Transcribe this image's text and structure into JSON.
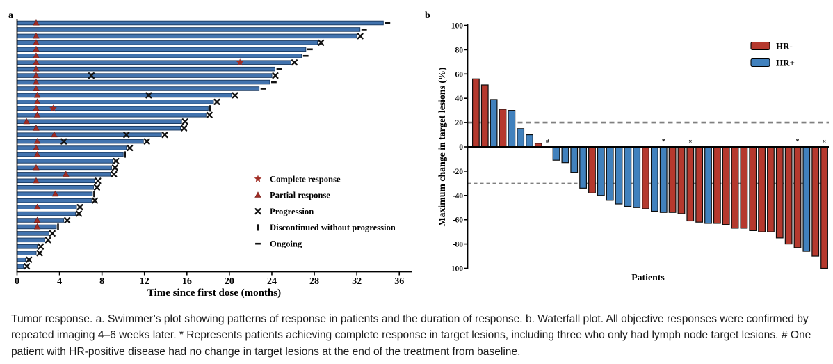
{
  "caption": "Tumor response. a. Swimmer’s plot showing patterns of response in patients and the duration of response. b. Waterfall plot. All objective responses were confirmed by repeated imaging 4–6 weeks later. * Represents patients achieving complete response in target lesions, including three who only had lymph node target lesions. # One patient with HR-positive disease had no change in target lesions at the end of the treatment from baseline.",
  "colors": {
    "hr_neg": "#b5392e",
    "hr_pos": "#4181bd",
    "swimmer_bar": "#4273ae",
    "swimmer_bar_edge": "#17375e",
    "response_red": "#a02c24",
    "marker_black": "#111111",
    "axis_black": "#000000",
    "dash_gray": "#7f7f7f"
  },
  "chart_data": [
    {
      "type": "bar",
      "subtype": "swimmer",
      "panel": "a",
      "xlabel": "Time since first dose (months)",
      "x_ticks": [
        0,
        4,
        8,
        12,
        16,
        20,
        24,
        28,
        32,
        36
      ],
      "xlim": [
        0,
        37.2
      ],
      "grid": false,
      "legend_position": "lower-right-inside",
      "legend": [
        {
          "symbol": "star",
          "label": "Complete response"
        },
        {
          "symbol": "triangle",
          "label": "Partial response"
        },
        {
          "symbol": "x",
          "label": "Progression"
        },
        {
          "symbol": "bar",
          "label": "Discontinued without progression"
        },
        {
          "symbol": "dash",
          "label": "Ongoing"
        }
      ],
      "patients": [
        {
          "duration": 34.5,
          "end": "ongoing",
          "pr": 1.8,
          "cr": null,
          "progression_marks": []
        },
        {
          "duration": 32.3,
          "end": "ongoing",
          "pr": null,
          "cr": null,
          "progression_marks": []
        },
        {
          "duration": 32.0,
          "end": "progression",
          "pr": 1.8,
          "cr": null,
          "progression_marks": []
        },
        {
          "duration": 28.3,
          "end": "progression",
          "pr": 1.8,
          "cr": null,
          "progression_marks": []
        },
        {
          "duration": 27.2,
          "end": "ongoing",
          "pr": 1.8,
          "cr": null,
          "progression_marks": []
        },
        {
          "duration": 26.8,
          "end": "ongoing",
          "pr": 1.8,
          "cr": null,
          "progression_marks": []
        },
        {
          "duration": 25.8,
          "end": "progression",
          "pr": 1.8,
          "cr": 21.0,
          "progression_marks": []
        },
        {
          "duration": 24.3,
          "end": "ongoing",
          "pr": 1.8,
          "cr": null,
          "progression_marks": []
        },
        {
          "duration": 24.0,
          "end": "progression",
          "pr": 1.8,
          "cr": null,
          "progression_marks": [
            7.0
          ]
        },
        {
          "duration": 23.8,
          "end": "ongoing",
          "pr": 1.8,
          "cr": null,
          "progression_marks": []
        },
        {
          "duration": 22.8,
          "end": "ongoing",
          "pr": 1.8,
          "cr": null,
          "progression_marks": []
        },
        {
          "duration": 20.2,
          "end": "progression",
          "pr": 1.9,
          "cr": null,
          "progression_marks": [
            12.4
          ]
        },
        {
          "duration": 18.5,
          "end": "progression",
          "pr": 1.9,
          "cr": null,
          "progression_marks": []
        },
        {
          "duration": 18.0,
          "end": "discontinued",
          "pr": 1.8,
          "cr": 3.4,
          "progression_marks": []
        },
        {
          "duration": 17.8,
          "end": "progression",
          "pr": 1.9,
          "cr": null,
          "progression_marks": []
        },
        {
          "duration": 15.5,
          "end": "progression",
          "pr": 0.9,
          "cr": null,
          "progression_marks": []
        },
        {
          "duration": 15.4,
          "end": "progression",
          "pr": 1.8,
          "cr": null,
          "progression_marks": []
        },
        {
          "duration": 13.6,
          "end": "progression",
          "pr": 3.5,
          "cr": null,
          "progression_marks": [
            10.3
          ]
        },
        {
          "duration": 11.9,
          "end": "progression",
          "pr": 1.9,
          "cr": null,
          "progression_marks": [
            4.4
          ]
        },
        {
          "duration": 10.3,
          "end": "progression",
          "pr": 1.8,
          "cr": null,
          "progression_marks": []
        },
        {
          "duration": 10.0,
          "end": "discontinued",
          "pr": 1.9,
          "cr": null,
          "progression_marks": []
        },
        {
          "duration": 9.0,
          "end": "progression",
          "pr": null,
          "cr": null,
          "progression_marks": []
        },
        {
          "duration": 8.9,
          "end": "progression",
          "pr": 1.8,
          "cr": null,
          "progression_marks": []
        },
        {
          "duration": 8.8,
          "end": "progression",
          "pr": 4.6,
          "cr": null,
          "progression_marks": []
        },
        {
          "duration": 7.3,
          "end": "progression",
          "pr": 1.8,
          "cr": null,
          "progression_marks": []
        },
        {
          "duration": 7.2,
          "end": "progression",
          "pr": null,
          "cr": null,
          "progression_marks": []
        },
        {
          "duration": 7.1,
          "end": "discontinued",
          "pr": 3.6,
          "cr": null,
          "progression_marks": []
        },
        {
          "duration": 7.0,
          "end": "progression",
          "pr": null,
          "cr": null,
          "progression_marks": []
        },
        {
          "duration": 5.6,
          "end": "progression",
          "pr": 1.9,
          "cr": null,
          "progression_marks": []
        },
        {
          "duration": 5.5,
          "end": "progression",
          "pr": null,
          "cr": null,
          "progression_marks": []
        },
        {
          "duration": 4.4,
          "end": "progression",
          "pr": 1.9,
          "cr": null,
          "progression_marks": []
        },
        {
          "duration": 3.7,
          "end": "discontinued",
          "pr": 1.9,
          "cr": null,
          "progression_marks": []
        },
        {
          "duration": 3.0,
          "end": "progression",
          "pr": null,
          "cr": null,
          "progression_marks": []
        },
        {
          "duration": 2.6,
          "end": "progression",
          "pr": null,
          "cr": null,
          "progression_marks": []
        },
        {
          "duration": 1.9,
          "end": "progression",
          "pr": null,
          "cr": null,
          "progression_marks": []
        },
        {
          "duration": 1.8,
          "end": "progression",
          "pr": null,
          "cr": null,
          "progression_marks": []
        },
        {
          "duration": 0.8,
          "end": "progression",
          "pr": null,
          "cr": null,
          "progression_marks": []
        },
        {
          "duration": 0.6,
          "end": "progression",
          "pr": null,
          "cr": null,
          "progression_marks": []
        }
      ]
    },
    {
      "type": "bar",
      "subtype": "waterfall",
      "panel": "b",
      "ylabel": "Maximum change in target lesions (%)",
      "xlabel": "Patients",
      "y_ticks": [
        100,
        80,
        60,
        40,
        20,
        0,
        -20,
        -40,
        -60,
        -80,
        -100
      ],
      "ylim": [
        -100,
        100
      ],
      "grid": false,
      "threshold_lines": [
        20,
        -30
      ],
      "legend_position": "upper-right-inside",
      "legend": [
        {
          "label": "HR-",
          "color_key": "hr_neg"
        },
        {
          "label": "HR+",
          "color_key": "hr_pos"
        }
      ],
      "bars": [
        {
          "value": 56,
          "group": "HR-",
          "mark": null
        },
        {
          "value": 51,
          "group": "HR-",
          "mark": null
        },
        {
          "value": 39,
          "group": "HR+",
          "mark": null
        },
        {
          "value": 31,
          "group": "HR-",
          "mark": null
        },
        {
          "value": 30,
          "group": "HR+",
          "mark": null
        },
        {
          "value": 15,
          "group": "HR+",
          "mark": null
        },
        {
          "value": 10,
          "group": "HR+",
          "mark": null
        },
        {
          "value": 3,
          "group": "HR-",
          "mark": null
        },
        {
          "value": 0,
          "group": "HR+",
          "mark": "#"
        },
        {
          "value": -11,
          "group": "HR+",
          "mark": null
        },
        {
          "value": -13,
          "group": "HR+",
          "mark": null
        },
        {
          "value": -21,
          "group": "HR+",
          "mark": null
        },
        {
          "value": -34,
          "group": "HR+",
          "mark": null
        },
        {
          "value": -38,
          "group": "HR-",
          "mark": null
        },
        {
          "value": -40,
          "group": "HR+",
          "mark": null
        },
        {
          "value": -44,
          "group": "HR+",
          "mark": null
        },
        {
          "value": -47,
          "group": "HR+",
          "mark": null
        },
        {
          "value": -49,
          "group": "HR+",
          "mark": null
        },
        {
          "value": -50,
          "group": "HR+",
          "mark": null
        },
        {
          "value": -51,
          "group": "HR-",
          "mark": null
        },
        {
          "value": -53,
          "group": "HR+",
          "mark": null
        },
        {
          "value": -54,
          "group": "HR+",
          "mark": "*"
        },
        {
          "value": -54,
          "group": "HR-",
          "mark": null
        },
        {
          "value": -55,
          "group": "HR-",
          "mark": null
        },
        {
          "value": -61,
          "group": "HR-",
          "mark": "×"
        },
        {
          "value": -62,
          "group": "HR-",
          "mark": null
        },
        {
          "value": -63,
          "group": "HR+",
          "mark": null
        },
        {
          "value": -63,
          "group": "HR-",
          "mark": null
        },
        {
          "value": -64,
          "group": "HR-",
          "mark": null
        },
        {
          "value": -67,
          "group": "HR-",
          "mark": null
        },
        {
          "value": -67,
          "group": "HR-",
          "mark": null
        },
        {
          "value": -69,
          "group": "HR-",
          "mark": null
        },
        {
          "value": -70,
          "group": "HR-",
          "mark": null
        },
        {
          "value": -70,
          "group": "HR-",
          "mark": null
        },
        {
          "value": -75,
          "group": "HR-",
          "mark": null
        },
        {
          "value": -80,
          "group": "HR-",
          "mark": null
        },
        {
          "value": -83,
          "group": "HR-",
          "mark": "*"
        },
        {
          "value": -86,
          "group": "HR+",
          "mark": null
        },
        {
          "value": -90,
          "group": "HR-",
          "mark": null
        },
        {
          "value": -100,
          "group": "HR-",
          "mark": "×"
        }
      ]
    }
  ]
}
